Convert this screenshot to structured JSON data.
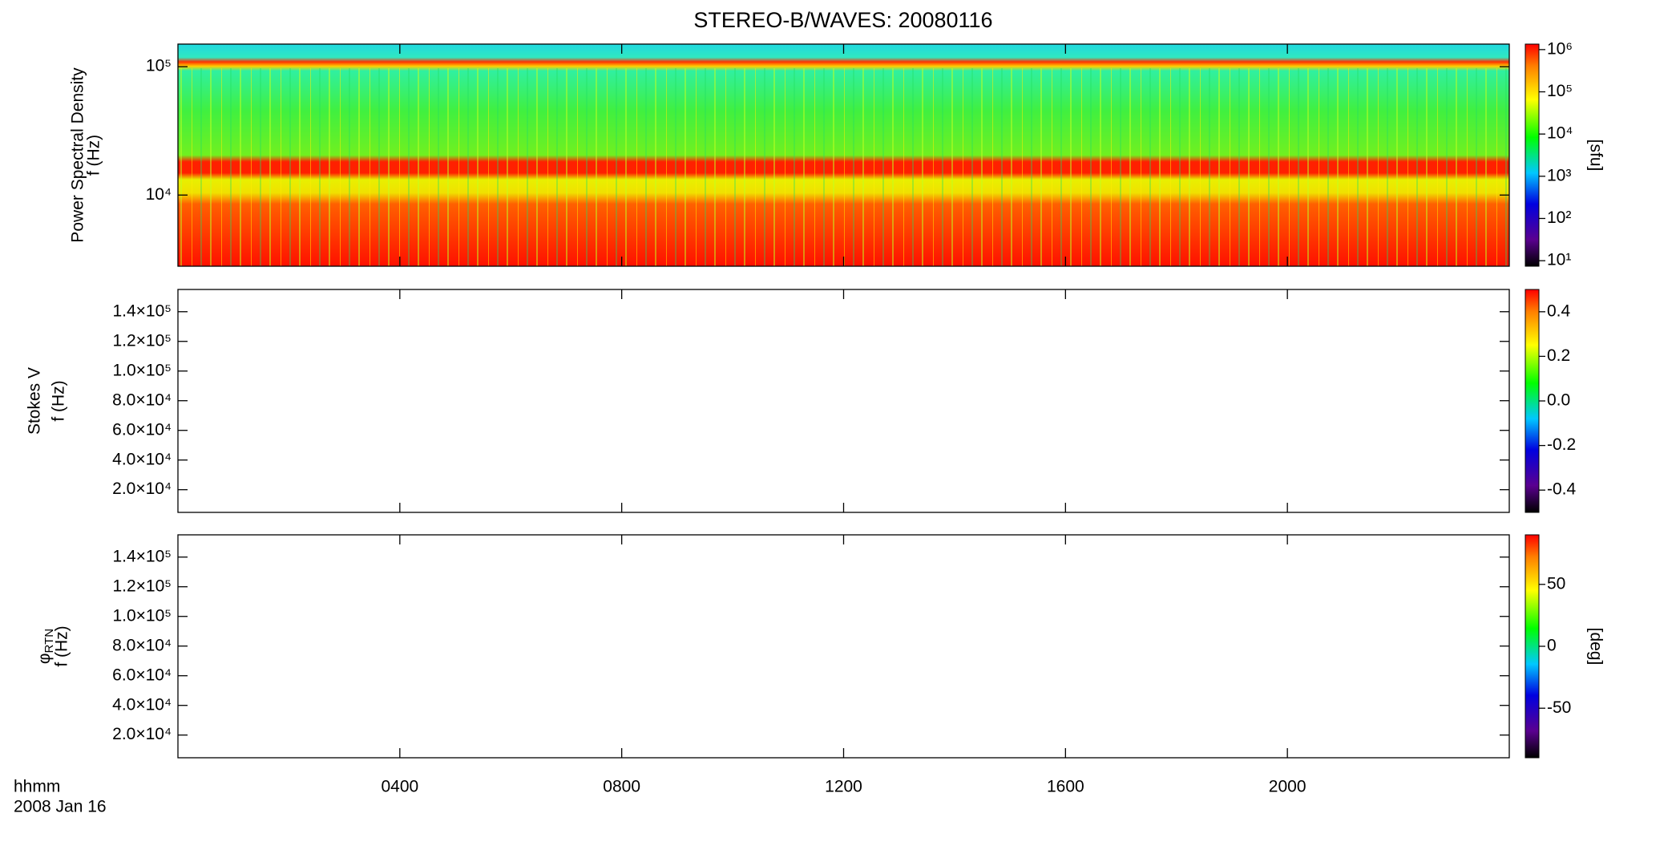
{
  "chart_data": [
    {
      "type": "heatmap",
      "title": "STEREO-B/WAVES: 20080116",
      "ylabel": [
        "Power Spectral Density",
        "f (Hz)"
      ],
      "log_y": true,
      "ylim": [
        2790,
        150000
      ],
      "yticks": [
        {
          "value": 10000,
          "label": "10⁴"
        },
        {
          "value": 100000,
          "label": "10⁵"
        }
      ],
      "xlim": [
        0,
        24
      ],
      "colorbar": {
        "log": true,
        "label": "[sfu]",
        "clim": [
          7.4,
          1350000
        ],
        "ticks": [
          {
            "value": 10,
            "label": "10¹"
          },
          {
            "value": 100,
            "label": "10²"
          },
          {
            "value": 1000,
            "label": "10³"
          },
          {
            "value": 10000,
            "label": "10⁴"
          },
          {
            "value": 100000,
            "label": "10⁵"
          },
          {
            "value": 1000000,
            "label": "10⁶"
          }
        ]
      }
    },
    {
      "type": "heatmap",
      "ylabel": [
        "Stokes V",
        "f (Hz)"
      ],
      "log_y": false,
      "ylim": [
        4700,
        155000
      ],
      "yticks": [
        {
          "value": 20000,
          "label": "2.0×10⁴"
        },
        {
          "value": 40000,
          "label": "4.0×10⁴"
        },
        {
          "value": 60000,
          "label": "6.0×10⁴"
        },
        {
          "value": 80000,
          "label": "8.0×10⁴"
        },
        {
          "value": 100000,
          "label": "1.0×10⁵"
        },
        {
          "value": 120000,
          "label": "1.2×10⁵"
        },
        {
          "value": 140000,
          "label": "1.4×10⁵"
        }
      ],
      "xlim": [
        0,
        24
      ],
      "colorbar": {
        "log": false,
        "clim": [
          -0.5,
          0.5
        ],
        "ticks": [
          -0.4,
          -0.2,
          {
            "value": 0,
            "label": "0.0"
          },
          0.2,
          0.4
        ]
      }
    },
    {
      "type": "heatmap",
      "ylabel_symbol": "φ",
      "ylabel_subscript": "RTN",
      "ylabel": [
        "f (Hz)"
      ],
      "log_y": false,
      "ylim": [
        4700,
        155000
      ],
      "yticks": [
        {
          "value": 20000,
          "label": "2.0×10⁴"
        },
        {
          "value": 40000,
          "label": "4.0×10⁴"
        },
        {
          "value": 60000,
          "label": "6.0×10⁴"
        },
        {
          "value": 80000,
          "label": "8.0×10⁴"
        },
        {
          "value": 100000,
          "label": "1.0×10⁵"
        },
        {
          "value": 120000,
          "label": "1.2×10⁵"
        },
        {
          "value": 140000,
          "label": "1.4×10⁵"
        }
      ],
      "xlim": [
        0,
        24
      ],
      "xticks": [
        {
          "value": 4,
          "label": "0400"
        },
        {
          "value": 8,
          "label": "0800"
        },
        {
          "value": 12,
          "label": "1200"
        },
        {
          "value": 16,
          "label": "1600"
        },
        {
          "value": 20,
          "label": "2000"
        }
      ],
      "xlabel": [
        "hhmm",
        "2008 Jan 16"
      ],
      "colorbar": {
        "log": false,
        "label": "[deg]",
        "clim": [
          -90,
          90
        ],
        "ticks": [
          -50,
          0,
          50
        ]
      }
    }
  ]
}
